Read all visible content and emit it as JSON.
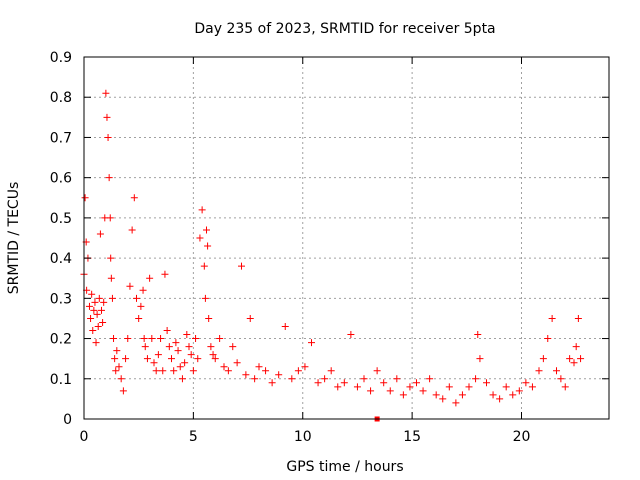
{
  "chart_data": {
    "type": "scatter",
    "title": "Day 235 of 2023, SRMTID for receiver 5pta",
    "xlabel": "GPS time / hours",
    "ylabel": "SRMTID / TECUs",
    "xlim": [
      0,
      24
    ],
    "ylim": [
      0,
      0.9
    ],
    "xticks": [
      0,
      5,
      10,
      15,
      20
    ],
    "xtick_labels": [
      "0",
      "5",
      "10",
      "15",
      "20"
    ],
    "yticks": [
      0,
      0.1,
      0.2,
      0.3,
      0.4,
      0.5,
      0.6,
      0.7,
      0.8,
      0.9
    ],
    "ytick_labels": [
      "0",
      "0.1",
      "0.2",
      "0.3",
      "0.4",
      "0.5",
      "0.6",
      "0.7",
      "0.8",
      "0.9"
    ],
    "grid": true,
    "marker": "plus",
    "color": "#ff0000",
    "series": [
      {
        "name": "SRMTID",
        "x": [
          0.0,
          0.05,
          0.1,
          0.12,
          0.18,
          0.25,
          0.3,
          0.35,
          0.4,
          0.45,
          0.5,
          0.55,
          0.6,
          0.65,
          0.7,
          0.75,
          0.8,
          0.85,
          0.9,
          0.95,
          1.0,
          1.05,
          1.1,
          1.15,
          1.2,
          1.22,
          1.25,
          1.3,
          1.35,
          1.4,
          1.45,
          1.5,
          1.6,
          1.7,
          1.8,
          1.9,
          2.0,
          2.1,
          2.2,
          2.3,
          2.4,
          2.5,
          2.6,
          2.7,
          2.75,
          2.8,
          2.9,
          3.0,
          3.1,
          3.2,
          3.3,
          3.4,
          3.5,
          3.6,
          3.7,
          3.8,
          3.9,
          4.0,
          4.1,
          4.2,
          4.3,
          4.4,
          4.5,
          4.6,
          4.7,
          4.8,
          4.9,
          5.0,
          5.1,
          5.2,
          5.3,
          5.4,
          5.5,
          5.55,
          5.6,
          5.65,
          5.7,
          5.8,
          5.9,
          6.0,
          6.2,
          6.4,
          6.6,
          6.8,
          7.0,
          7.2,
          7.4,
          7.6,
          7.8,
          8.0,
          8.3,
          8.6,
          8.9,
          9.2,
          9.5,
          9.8,
          10.1,
          10.4,
          10.7,
          11.0,
          11.3,
          11.6,
          11.9,
          12.2,
          12.5,
          12.8,
          13.1,
          13.4,
          13.7,
          14.0,
          14.3,
          14.6,
          14.9,
          15.2,
          15.5,
          15.8,
          16.1,
          16.4,
          16.7,
          17.0,
          17.3,
          17.6,
          17.9,
          18.0,
          18.1,
          18.4,
          18.7,
          19.0,
          19.3,
          19.6,
          19.9,
          20.2,
          20.5,
          20.8,
          21.0,
          21.2,
          21.4,
          21.6,
          21.8,
          22.0,
          22.2,
          22.4,
          22.5,
          22.6,
          22.7
        ],
        "y": [
          0.36,
          0.55,
          0.44,
          0.32,
          0.4,
          0.28,
          0.25,
          0.31,
          0.22,
          0.27,
          0.29,
          0.19,
          0.26,
          0.23,
          0.3,
          0.46,
          0.27,
          0.24,
          0.29,
          0.5,
          0.81,
          0.75,
          0.7,
          0.6,
          0.5,
          0.4,
          0.35,
          0.3,
          0.2,
          0.15,
          0.12,
          0.17,
          0.13,
          0.1,
          0.07,
          0.15,
          0.2,
          0.33,
          0.47,
          0.55,
          0.3,
          0.25,
          0.28,
          0.32,
          0.2,
          0.18,
          0.15,
          0.35,
          0.2,
          0.14,
          0.12,
          0.16,
          0.2,
          0.12,
          0.36,
          0.22,
          0.18,
          0.15,
          0.12,
          0.19,
          0.17,
          0.13,
          0.1,
          0.14,
          0.21,
          0.18,
          0.16,
          0.12,
          0.2,
          0.15,
          0.45,
          0.52,
          0.38,
          0.3,
          0.47,
          0.43,
          0.25,
          0.18,
          0.16,
          0.15,
          0.2,
          0.13,
          0.12,
          0.18,
          0.14,
          0.38,
          0.11,
          0.25,
          0.1,
          0.13,
          0.12,
          0.09,
          0.11,
          0.23,
          0.1,
          0.12,
          0.13,
          0.19,
          0.09,
          0.1,
          0.12,
          0.08,
          0.09,
          0.21,
          0.08,
          0.1,
          0.07,
          0.12,
          0.09,
          0.07,
          0.1,
          0.06,
          0.08,
          0.09,
          0.07,
          0.1,
          0.06,
          0.05,
          0.08,
          0.04,
          0.06,
          0.08,
          0.1,
          0.21,
          0.15,
          0.09,
          0.06,
          0.05,
          0.08,
          0.06,
          0.07,
          0.09,
          0.08,
          0.12,
          0.15,
          0.2,
          0.25,
          0.12,
          0.1,
          0.08,
          0.15,
          0.14,
          0.18,
          0.25,
          0.15
        ]
      }
    ],
    "outlier_marker": {
      "x": 13.4,
      "y": 0
    }
  }
}
